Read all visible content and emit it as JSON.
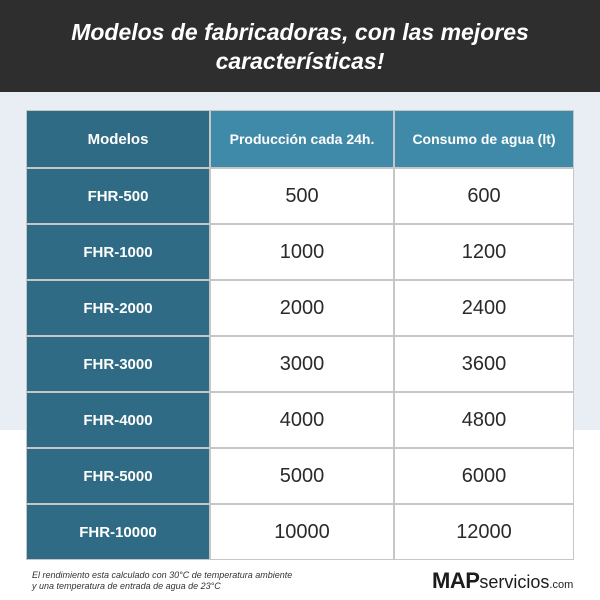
{
  "header": {
    "title_line1": "Modelos de fabricadoras, con las mejores",
    "title_line2": "características!"
  },
  "table": {
    "columns": [
      "Modelos",
      "Producción cada 24h.",
      "Consumo de agua (lt)"
    ],
    "rows": [
      {
        "model": "FHR-500",
        "production": "500",
        "water": "600"
      },
      {
        "model": "FHR-1000",
        "production": "1000",
        "water": "1200"
      },
      {
        "model": "FHR-2000",
        "production": "2000",
        "water": "2400"
      },
      {
        "model": "FHR-3000",
        "production": "3000",
        "water": "3600"
      },
      {
        "model": "FHR-4000",
        "production": "4000",
        "water": "4800"
      },
      {
        "model": "FHR-5000",
        "production": "5000",
        "water": "6000"
      },
      {
        "model": "FHR-10000",
        "production": "10000",
        "water": "12000"
      }
    ]
  },
  "footnote": {
    "line1": "El rendimiento esta calculado con 30°C de temperatura ambiente",
    "line2": "y una temperatura de entrada de agua de 23°C"
  },
  "logo": {
    "brand": "MAP",
    "sub": "servicios",
    "domain": ".com"
  },
  "colors": {
    "header_bg": "#2e2e2e",
    "model_col": "#2f6b85",
    "header_cells": "#3f8aa9",
    "band_bg": "#e8eef3"
  }
}
